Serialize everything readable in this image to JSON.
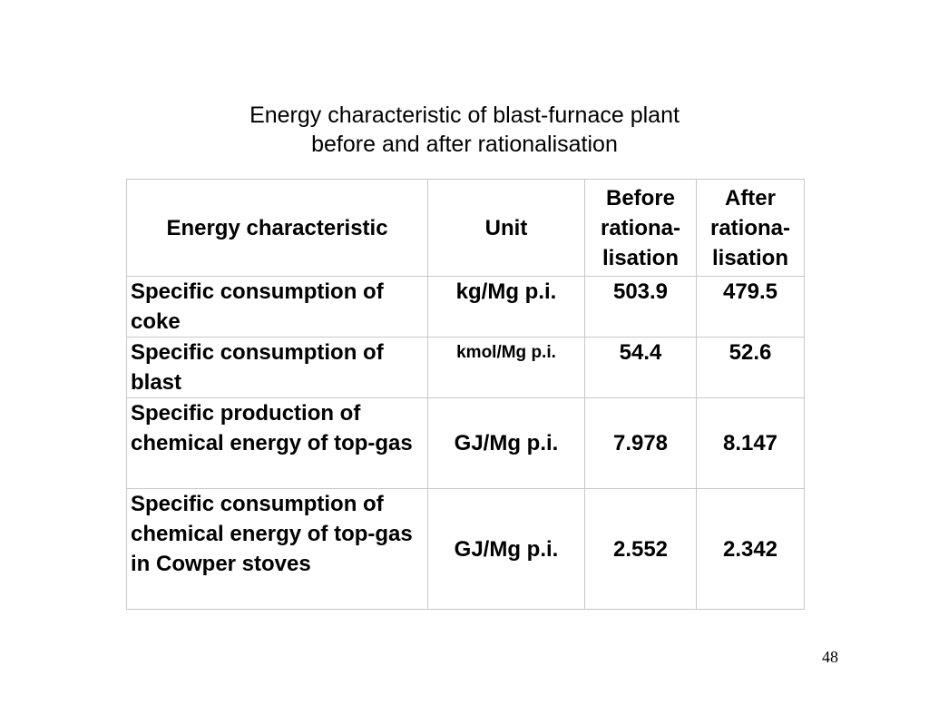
{
  "title": {
    "line1": "Energy characteristic of blast-furnace plant",
    "line2": "before and after rationalisation"
  },
  "table": {
    "headers": {
      "characteristic": "Energy characteristic",
      "unit": "Unit",
      "before": [
        "Before",
        "rationa-",
        "lisation"
      ],
      "after": [
        "After",
        "rationa-",
        "lisation"
      ]
    },
    "rows": [
      {
        "label": "Specific consumption of coke",
        "unit": "kg/Mg p.i.",
        "before": "503.9",
        "after": "479.5"
      },
      {
        "label": "Specific consumption of blast",
        "unit": "kmol/Mg p.i.",
        "before": "54.4",
        "after": "52.6"
      },
      {
        "label": "Specific production of chemical energy of top-gas",
        "unit": "GJ/Mg p.i.",
        "before": "7.978",
        "after": "8.147"
      },
      {
        "label": "Specific consumption of chemical energy of top-gas in Cowper stoves",
        "unit": "GJ/Mg p.i.",
        "before": "2.552",
        "after": "2.342"
      }
    ]
  },
  "page_number": "48"
}
